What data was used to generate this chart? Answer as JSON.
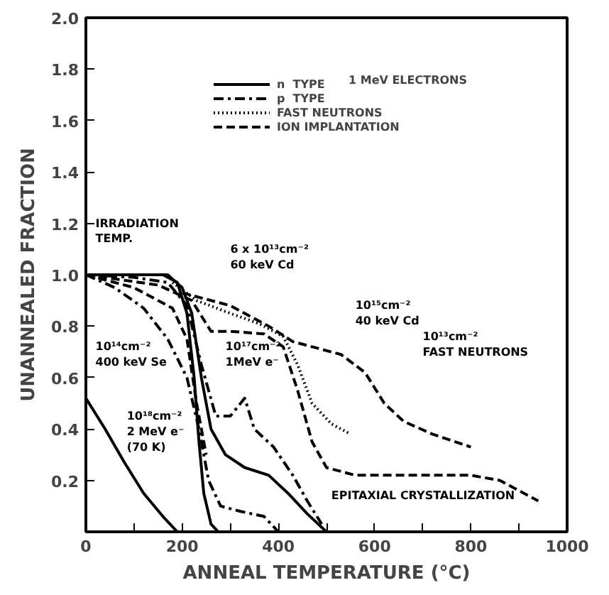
{
  "chart_data": {
    "type": "line",
    "xlabel": "ANNEAL TEMPERATURE (°C)",
    "ylabel": "UNANNEALED FRACTION",
    "xlim": [
      0,
      1000
    ],
    "ylim": [
      0,
      2.0
    ],
    "xticks": [
      0,
      {
        "value": 100,
        "label": null
      },
      200,
      {
        "value": 300,
        "label": null
      },
      400,
      {
        "value": 500,
        "label": null
      },
      600,
      {
        "value": 700,
        "label": null
      },
      800,
      {
        "value": 900,
        "label": null
      },
      1000
    ],
    "yticks": [
      {
        "value": 0.2,
        "label": "0.2"
      },
      {
        "value": 0.4,
        "label": "0.4"
      },
      {
        "value": 0.6,
        "label": "0.6"
      },
      {
        "value": 0.8,
        "label": "0.8"
      },
      {
        "value": 1.0,
        "label": "1.0"
      },
      {
        "value": 1.2,
        "label": "1.2"
      },
      {
        "value": 1.4,
        "label": "1.4"
      },
      {
        "value": 1.6,
        "label": "1.6"
      },
      {
        "value": 1.8,
        "label": "1.8"
      },
      {
        "value": 2.0,
        "label": "2.0"
      }
    ],
    "grid": false,
    "legend": "top right",
    "marker": "none",
    "series": [
      {
        "name": "n  TYPE",
        "color": "#000000",
        "line_style": "solid",
        "x": [
          0,
          40,
          80,
          120,
          160,
          190
        ],
        "values": [
          0.52,
          0.4,
          0.27,
          0.15,
          0.06,
          0
        ]
      },
      {
        "color": "#000000",
        "line_style": "solid",
        "x": [
          0,
          100,
          160,
          190,
          210,
          225,
          235,
          245,
          260,
          275
        ],
        "values": [
          1.0,
          1.0,
          1.0,
          0.97,
          0.85,
          0.6,
          0.35,
          0.15,
          0.03,
          0
        ]
      },
      {
        "color": "#000000",
        "line_style": "solid",
        "x": [
          0,
          100,
          170,
          200,
          220,
          240,
          260,
          290,
          330,
          380,
          420,
          460,
          500
        ],
        "values": [
          1.0,
          1.0,
          1.0,
          0.95,
          0.85,
          0.6,
          0.4,
          0.3,
          0.25,
          0.22,
          0.15,
          0.07,
          0
        ]
      },
      {
        "name": "p  TYPE",
        "color": "#000000",
        "line_style": "dashdot",
        "x": [
          0,
          60,
          120,
          170,
          210,
          235,
          255,
          280,
          320,
          370,
          400
        ],
        "values": [
          1.0,
          0.95,
          0.87,
          0.75,
          0.6,
          0.4,
          0.2,
          0.1,
          0.08,
          0.06,
          0
        ]
      },
      {
        "color": "#000000",
        "line_style": "dashdot",
        "x": [
          0,
          100,
          170,
          210,
          240,
          270,
          300,
          330,
          350,
          390,
          430,
          460,
          490
        ],
        "values": [
          1.0,
          0.99,
          0.97,
          0.88,
          0.65,
          0.45,
          0.45,
          0.52,
          0.4,
          0.33,
          0.22,
          0.12,
          0.03
        ]
      },
      {
        "name": "FAST NEUTRONS",
        "color": "#000000",
        "line_style": "dotted",
        "x": [
          180,
          230,
          300,
          360,
          410,
          440,
          470,
          510,
          550
        ],
        "values": [
          0.97,
          0.9,
          0.85,
          0.81,
          0.76,
          0.65,
          0.5,
          0.42,
          0.38
        ]
      },
      {
        "name": "ION IMPLANTATION",
        "color": "#000000",
        "line_style": "dashed",
        "x": [
          0,
          100,
          180,
          210,
          230,
          250
        ],
        "values": [
          1.0,
          0.95,
          0.87,
          0.75,
          0.5,
          0.3
        ]
      },
      {
        "color": "#000000",
        "line_style": "dashed",
        "x": [
          0,
          150,
          220,
          260,
          300,
          370,
          410,
          440,
          470,
          500,
          560,
          700,
          800,
          860,
          900,
          940
        ],
        "values": [
          1.0,
          0.96,
          0.9,
          0.78,
          0.78,
          0.77,
          0.72,
          0.55,
          0.35,
          0.25,
          0.22,
          0.22,
          0.22,
          0.2,
          0.16,
          0.12
        ]
      },
      {
        "color": "#000000",
        "line_style": "dashed",
        "x": [
          200,
          300,
          380,
          430,
          470,
          530,
          580,
          620,
          660,
          720,
          800
        ],
        "values": [
          0.93,
          0.88,
          0.8,
          0.74,
          0.72,
          0.69,
          0.62,
          0.5,
          0.43,
          0.38,
          0.33
        ]
      }
    ],
    "annotations": [
      "1 MeV ELECTRONS",
      "IRRADIATION\nTEMP.",
      "6 x 10¹³cm⁻²\n60 keV Cd",
      "10¹⁵cm⁻²\n40 keV Cd",
      "10¹³cm⁻²\nFAST NEUTRONS",
      "10¹⁴cm⁻²\n400 keV Se",
      "10¹⁷cm⁻²\n1MeV e⁻",
      "10¹⁸cm⁻²\n2 MeV e⁻\n(70 K)",
      "EPITAXIAL CRYSTALLIZATION"
    ]
  }
}
